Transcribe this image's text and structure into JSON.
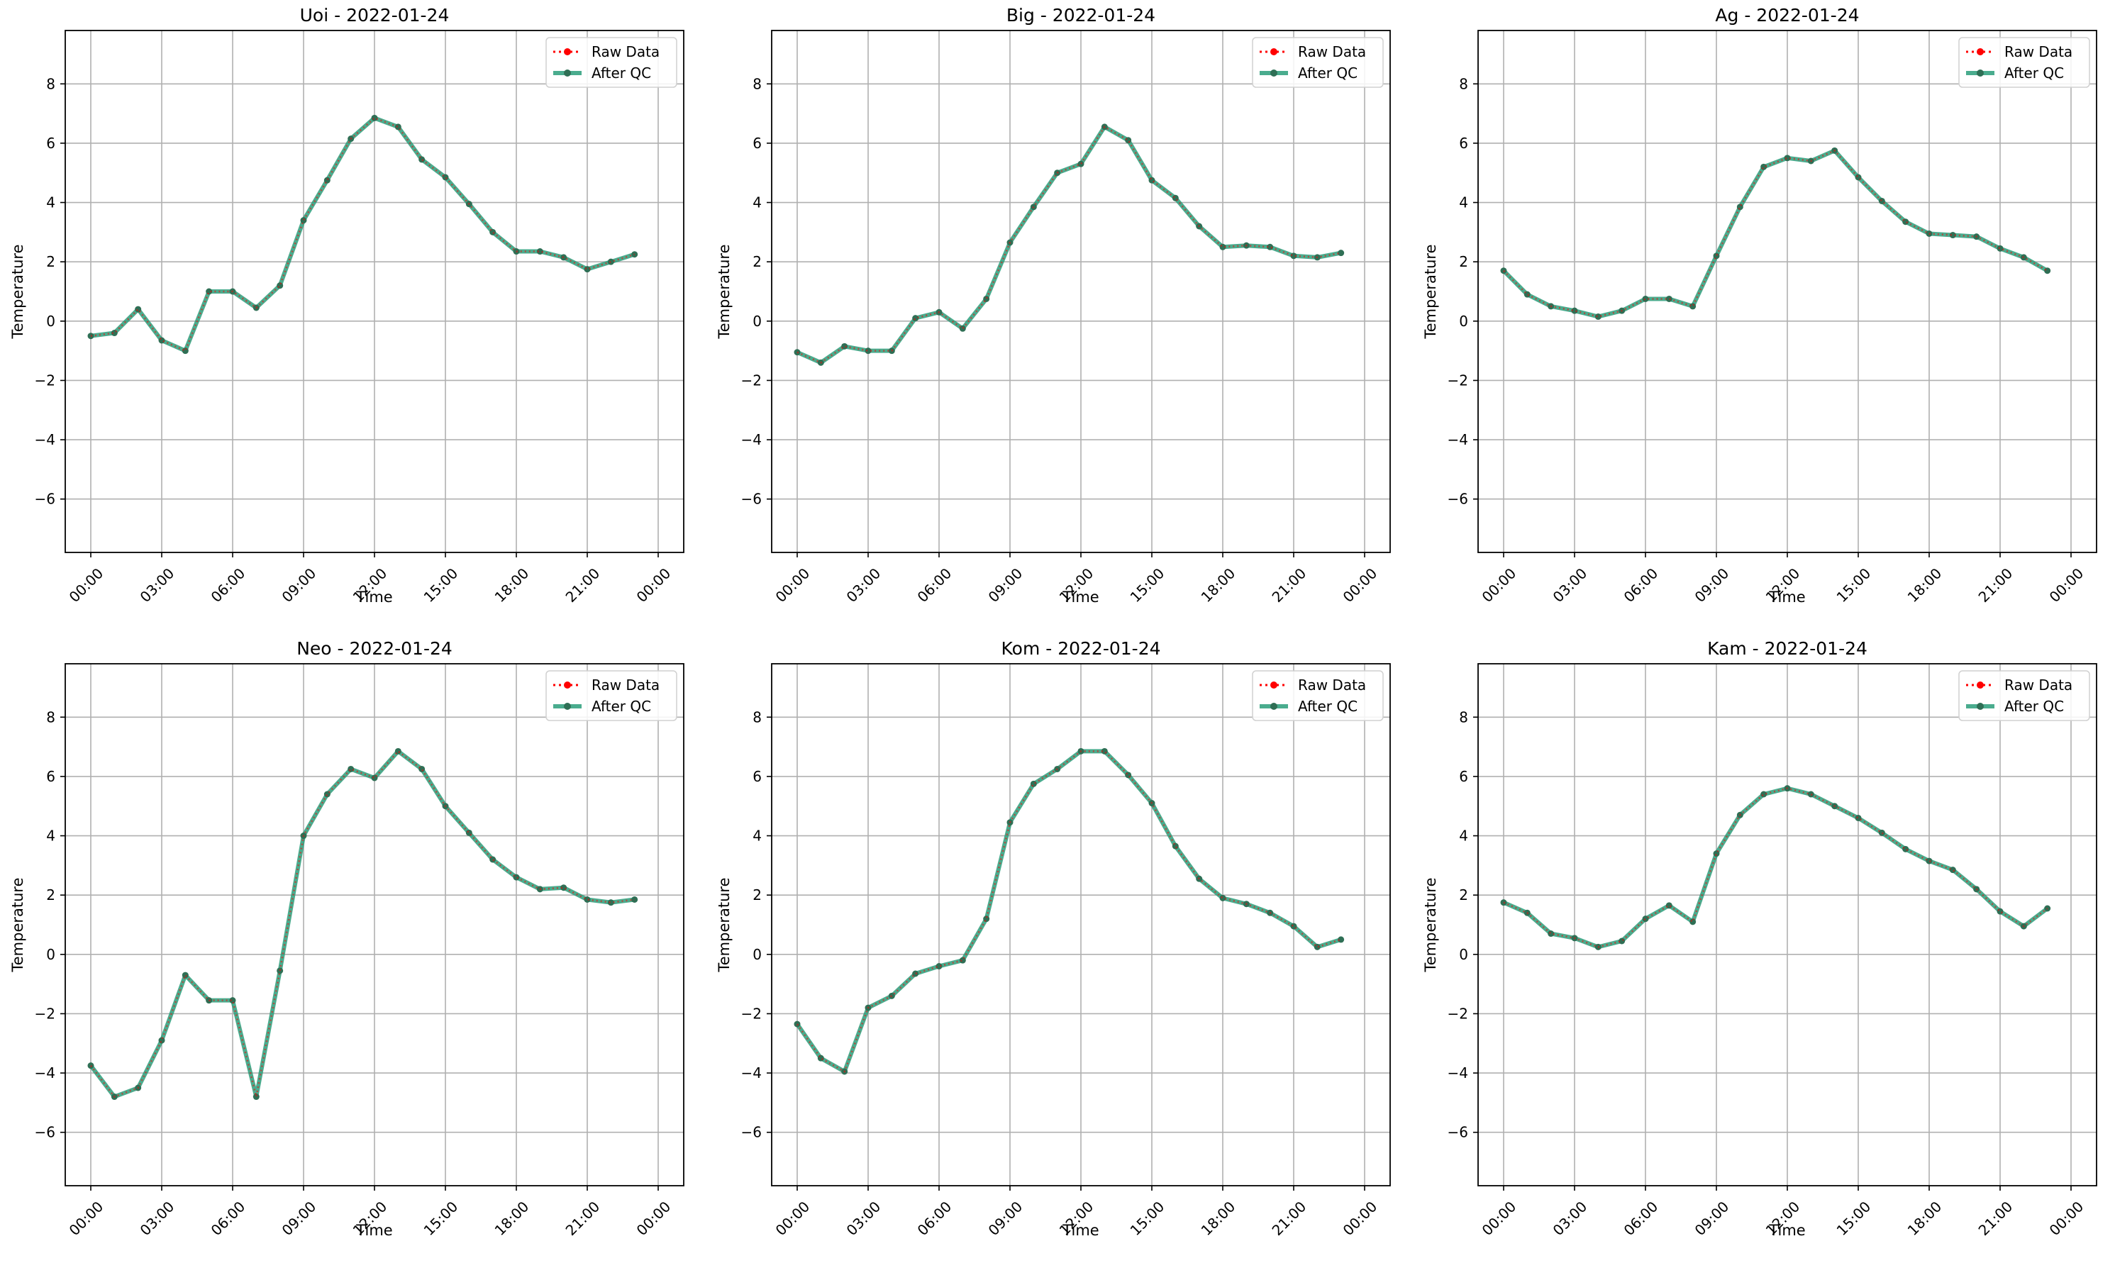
{
  "chart_data": [
    {
      "type": "line",
      "title": "Uoi - 2022-01-24",
      "xlabel": "Time",
      "ylabel": "Temperature",
      "x": [
        "00:00",
        "01:00",
        "02:00",
        "03:00",
        "04:00",
        "05:00",
        "06:00",
        "07:00",
        "08:00",
        "09:00",
        "10:00",
        "11:00",
        "12:00",
        "13:00",
        "14:00",
        "15:00",
        "16:00",
        "17:00",
        "18:00",
        "19:00",
        "20:00",
        "21:00",
        "22:00",
        "23:00"
      ],
      "xticks": [
        "00:00",
        "03:00",
        "06:00",
        "09:00",
        "12:00",
        "15:00",
        "18:00",
        "21:00",
        "00:00"
      ],
      "yticks": [
        -6,
        -4,
        -2,
        0,
        2,
        4,
        6,
        8
      ],
      "ylim": [
        -7.8,
        9.8
      ],
      "grid": true,
      "legend": "top-right",
      "series": [
        {
          "name": "Raw Data",
          "color": "#ff0000",
          "style": "dotted",
          "values": [
            -0.5,
            -0.4,
            0.4,
            -0.65,
            -1.0,
            1.0,
            1.0,
            0.45,
            1.2,
            3.4,
            4.75,
            6.15,
            6.85,
            6.55,
            5.45,
            4.85,
            3.95,
            3.0,
            2.35,
            2.35,
            2.15,
            1.75,
            2.0,
            2.25
          ]
        },
        {
          "name": "After QC",
          "color": "#2a9d7a",
          "style": "solid",
          "values": [
            -0.5,
            -0.4,
            0.4,
            -0.65,
            -1.0,
            1.0,
            1.0,
            0.45,
            1.2,
            3.4,
            4.75,
            6.15,
            6.85,
            6.55,
            5.45,
            4.85,
            3.95,
            3.0,
            2.35,
            2.35,
            2.15,
            1.75,
            2.0,
            2.25
          ]
        }
      ]
    },
    {
      "type": "line",
      "title": "Big - 2022-01-24",
      "xlabel": "Time",
      "ylabel": "Temperature",
      "x": [
        "00:00",
        "01:00",
        "02:00",
        "03:00",
        "04:00",
        "05:00",
        "06:00",
        "07:00",
        "08:00",
        "09:00",
        "10:00",
        "11:00",
        "12:00",
        "13:00",
        "14:00",
        "15:00",
        "16:00",
        "17:00",
        "18:00",
        "19:00",
        "20:00",
        "21:00",
        "22:00",
        "23:00"
      ],
      "xticks": [
        "00:00",
        "03:00",
        "06:00",
        "09:00",
        "12:00",
        "15:00",
        "18:00",
        "21:00",
        "00:00"
      ],
      "yticks": [
        -6,
        -4,
        -2,
        0,
        2,
        4,
        6,
        8
      ],
      "ylim": [
        -7.8,
        9.8
      ],
      "grid": true,
      "legend": "top-right",
      "series": [
        {
          "name": "Raw Data",
          "color": "#ff0000",
          "style": "dotted",
          "values": [
            -1.05,
            -1.4,
            -0.85,
            -1.0,
            -1.0,
            0.1,
            0.3,
            -0.25,
            0.75,
            2.65,
            3.85,
            5.0,
            5.3,
            6.55,
            6.1,
            4.75,
            4.15,
            3.2,
            2.5,
            2.55,
            2.5,
            2.2,
            2.15,
            2.3
          ]
        },
        {
          "name": "After QC",
          "color": "#2a9d7a",
          "style": "solid",
          "values": [
            -1.05,
            -1.4,
            -0.85,
            -1.0,
            -1.0,
            0.1,
            0.3,
            -0.25,
            0.75,
            2.65,
            3.85,
            5.0,
            5.3,
            6.55,
            6.1,
            4.75,
            4.15,
            3.2,
            2.5,
            2.55,
            2.5,
            2.2,
            2.15,
            2.3
          ]
        }
      ]
    },
    {
      "type": "line",
      "title": "Ag - 2022-01-24",
      "xlabel": "Time",
      "ylabel": "Temperature",
      "x": [
        "00:00",
        "01:00",
        "02:00",
        "03:00",
        "04:00",
        "05:00",
        "06:00",
        "07:00",
        "08:00",
        "09:00",
        "10:00",
        "11:00",
        "12:00",
        "13:00",
        "14:00",
        "15:00",
        "16:00",
        "17:00",
        "18:00",
        "19:00",
        "20:00",
        "21:00",
        "22:00",
        "23:00"
      ],
      "xticks": [
        "00:00",
        "03:00",
        "06:00",
        "09:00",
        "12:00",
        "15:00",
        "18:00",
        "21:00",
        "00:00"
      ],
      "yticks": [
        -6,
        -4,
        -2,
        0,
        2,
        4,
        6,
        8
      ],
      "ylim": [
        -7.8,
        9.8
      ],
      "grid": true,
      "legend": "top-right",
      "series": [
        {
          "name": "Raw Data",
          "color": "#ff0000",
          "style": "dotted",
          "values": [
            1.7,
            0.9,
            0.5,
            0.35,
            0.15,
            0.35,
            0.75,
            0.75,
            0.5,
            2.2,
            3.85,
            5.2,
            5.5,
            5.4,
            5.75,
            4.85,
            4.05,
            3.35,
            2.95,
            2.9,
            2.85,
            2.45,
            2.15,
            1.7
          ]
        },
        {
          "name": "After QC",
          "color": "#2a9d7a",
          "style": "solid",
          "values": [
            1.7,
            0.9,
            0.5,
            0.35,
            0.15,
            0.35,
            0.75,
            0.75,
            0.5,
            2.2,
            3.85,
            5.2,
            5.5,
            5.4,
            5.75,
            4.85,
            4.05,
            3.35,
            2.95,
            2.9,
            2.85,
            2.45,
            2.15,
            1.7
          ]
        }
      ]
    },
    {
      "type": "line",
      "title": "Neo - 2022-01-24",
      "xlabel": "Time",
      "ylabel": "Temperature",
      "x": [
        "00:00",
        "01:00",
        "02:00",
        "03:00",
        "04:00",
        "05:00",
        "06:00",
        "07:00",
        "08:00",
        "09:00",
        "10:00",
        "11:00",
        "12:00",
        "13:00",
        "14:00",
        "15:00",
        "16:00",
        "17:00",
        "18:00",
        "19:00",
        "20:00",
        "21:00",
        "22:00",
        "23:00"
      ],
      "xticks": [
        "00:00",
        "03:00",
        "06:00",
        "09:00",
        "12:00",
        "15:00",
        "18:00",
        "21:00",
        "00:00"
      ],
      "yticks": [
        -6,
        -4,
        -2,
        0,
        2,
        4,
        6,
        8
      ],
      "ylim": [
        -7.8,
        9.8
      ],
      "grid": true,
      "legend": "top-right",
      "series": [
        {
          "name": "Raw Data",
          "color": "#ff0000",
          "style": "dotted",
          "values": [
            -3.75,
            -4.8,
            -4.5,
            -2.9,
            -0.7,
            -1.55,
            -1.55,
            -4.8,
            -0.55,
            4.0,
            5.4,
            6.25,
            5.95,
            6.85,
            6.25,
            5.0,
            4.1,
            3.2,
            2.6,
            2.2,
            2.25,
            1.85,
            1.75,
            1.85
          ]
        },
        {
          "name": "After QC",
          "color": "#2a9d7a",
          "style": "solid",
          "values": [
            -3.75,
            -4.8,
            -4.5,
            -2.9,
            -0.7,
            -1.55,
            -1.55,
            -4.8,
            -0.55,
            4.0,
            5.4,
            6.25,
            5.95,
            6.85,
            6.25,
            5.0,
            4.1,
            3.2,
            2.6,
            2.2,
            2.25,
            1.85,
            1.75,
            1.85
          ]
        }
      ]
    },
    {
      "type": "line",
      "title": "Kom - 2022-01-24",
      "xlabel": "Time",
      "ylabel": "Temperature",
      "x": [
        "00:00",
        "01:00",
        "02:00",
        "03:00",
        "04:00",
        "05:00",
        "06:00",
        "07:00",
        "08:00",
        "09:00",
        "10:00",
        "11:00",
        "12:00",
        "13:00",
        "14:00",
        "15:00",
        "16:00",
        "17:00",
        "18:00",
        "19:00",
        "20:00",
        "21:00",
        "22:00",
        "23:00"
      ],
      "xticks": [
        "00:00",
        "03:00",
        "06:00",
        "09:00",
        "12:00",
        "15:00",
        "18:00",
        "21:00",
        "00:00"
      ],
      "yticks": [
        -6,
        -4,
        -2,
        0,
        2,
        4,
        6,
        8
      ],
      "ylim": [
        -7.8,
        9.8
      ],
      "grid": true,
      "legend": "top-right",
      "series": [
        {
          "name": "Raw Data",
          "color": "#ff0000",
          "style": "dotted",
          "values": [
            -2.35,
            -3.5,
            -3.95,
            -1.8,
            -1.4,
            -0.65,
            -0.4,
            -0.2,
            1.2,
            4.45,
            5.75,
            6.25,
            6.85,
            6.85,
            6.05,
            5.1,
            3.65,
            2.55,
            1.9,
            1.7,
            1.4,
            0.95,
            0.25,
            0.5
          ]
        },
        {
          "name": "After QC",
          "color": "#2a9d7a",
          "style": "solid",
          "values": [
            -2.35,
            -3.5,
            -3.95,
            -1.8,
            -1.4,
            -0.65,
            -0.4,
            -0.2,
            1.2,
            4.45,
            5.75,
            6.25,
            6.85,
            6.85,
            6.05,
            5.1,
            3.65,
            2.55,
            1.9,
            1.7,
            1.4,
            0.95,
            0.25,
            0.5
          ]
        }
      ]
    },
    {
      "type": "line",
      "title": "Kam - 2022-01-24",
      "xlabel": "Time",
      "ylabel": "Temperature",
      "x": [
        "00:00",
        "01:00",
        "02:00",
        "03:00",
        "04:00",
        "05:00",
        "06:00",
        "07:00",
        "08:00",
        "09:00",
        "10:00",
        "11:00",
        "12:00",
        "13:00",
        "14:00",
        "15:00",
        "16:00",
        "17:00",
        "18:00",
        "19:00",
        "20:00",
        "21:00",
        "22:00",
        "23:00"
      ],
      "xticks": [
        "00:00",
        "03:00",
        "06:00",
        "09:00",
        "12:00",
        "15:00",
        "18:00",
        "21:00",
        "00:00"
      ],
      "yticks": [
        -6,
        -4,
        -2,
        0,
        2,
        4,
        6,
        8
      ],
      "ylim": [
        -7.8,
        9.8
      ],
      "grid": true,
      "legend": "top-right",
      "series": [
        {
          "name": "Raw Data",
          "color": "#ff0000",
          "style": "dotted",
          "values": [
            1.75,
            1.4,
            0.7,
            0.55,
            0.25,
            0.45,
            1.2,
            1.65,
            1.1,
            3.4,
            4.7,
            5.4,
            5.6,
            5.4,
            5.0,
            4.6,
            4.1,
            3.55,
            3.15,
            2.85,
            2.2,
            1.45,
            0.95,
            1.55
          ]
        },
        {
          "name": "After QC",
          "color": "#2a9d7a",
          "style": "solid",
          "values": [
            1.75,
            1.4,
            0.7,
            0.55,
            0.25,
            0.45,
            1.2,
            1.65,
            1.1,
            3.4,
            4.7,
            5.4,
            5.6,
            5.4,
            5.0,
            4.6,
            4.1,
            3.55,
            3.15,
            2.85,
            2.2,
            1.45,
            0.95,
            1.55
          ]
        }
      ]
    }
  ]
}
